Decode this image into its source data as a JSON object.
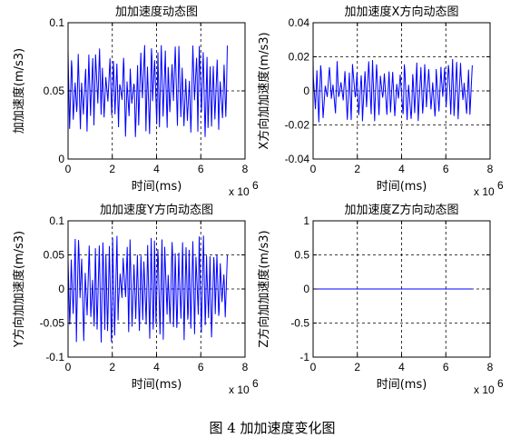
{
  "caption": "图 4  加加速度变化图",
  "colors": {
    "line": "#0000ff",
    "axis": "#000000",
    "grid": "#000000",
    "background": "#ffffff"
  },
  "chart_data": [
    {
      "type": "line",
      "title": "加加速度动态图",
      "xlabel": "时间(ms)",
      "ylabel": "加加速度(m/s3)",
      "x_multiplier": "x 10",
      "x_exponent": "6",
      "xlim": [
        0,
        8
      ],
      "ylim": [
        0,
        0.1
      ],
      "xticks": [
        "0",
        "2",
        "4",
        "6",
        "8"
      ],
      "yticks": [
        "0",
        "0.05",
        "0.1"
      ],
      "grid": true,
      "signal": {
        "x_start": 0,
        "x_end": 7.2,
        "center": 0.05,
        "amplitude": 0.034,
        "cycles": 46,
        "irregular": true
      },
      "series": [
        {
          "x_end": 7.2
        }
      ]
    },
    {
      "type": "line",
      "title": "加加速度X方向动态图",
      "xlabel": "时间(ms)",
      "ylabel": "X方向加加速度(m/s3)",
      "x_multiplier": "x 10",
      "x_exponent": "6",
      "xlim": [
        0,
        8
      ],
      "ylim": [
        -0.04,
        0.04
      ],
      "xticks": [
        "0",
        "2",
        "4",
        "6",
        "8"
      ],
      "yticks": [
        "-0.04",
        "-0.02",
        "0",
        "0.02",
        "0.04"
      ],
      "grid": true,
      "signal": {
        "x_start": 0,
        "x_end": 7.2,
        "center": 0,
        "amplitude": 0.019,
        "cycles": 40,
        "irregular": true
      },
      "series": [
        {
          "x_end": 7.2
        }
      ]
    },
    {
      "type": "line",
      "title": "加加速度Y方向动态图",
      "xlabel": "时间(ms)",
      "ylabel": "Y方向加加速度(m/s3)",
      "x_multiplier": "x 10",
      "x_exponent": "6",
      "xlim": [
        0,
        8
      ],
      "ylim": [
        -0.1,
        0.1
      ],
      "xticks": [
        "0",
        "2",
        "4",
        "6",
        "8"
      ],
      "yticks": [
        "-0.1",
        "-0.05",
        "0",
        "0.05",
        "0.1"
      ],
      "grid": true,
      "signal": {
        "x_start": 0,
        "x_end": 7.2,
        "center": 0,
        "amplitude": 0.08,
        "cycles": 46,
        "irregular": true
      },
      "series": [
        {
          "x_end": 7.2
        }
      ]
    },
    {
      "type": "line",
      "title": "加加速度Z方向动态图",
      "xlabel": "时间(ms)",
      "ylabel": "Z方向加加速度(m/s3)",
      "x_multiplier": "x 10",
      "x_exponent": "6",
      "xlim": [
        0,
        8
      ],
      "ylim": [
        -1,
        1
      ],
      "xticks": [
        "0",
        "2",
        "4",
        "6",
        "8"
      ],
      "yticks": [
        "-1",
        "-0.5",
        "0",
        "0.5",
        "1"
      ],
      "grid": true,
      "signal": {
        "x_start": 0,
        "x_end": 7.2,
        "center": 0,
        "amplitude": 0,
        "cycles": 0,
        "irregular": false
      },
      "series": [
        {
          "x_end": 7.2
        }
      ]
    }
  ]
}
